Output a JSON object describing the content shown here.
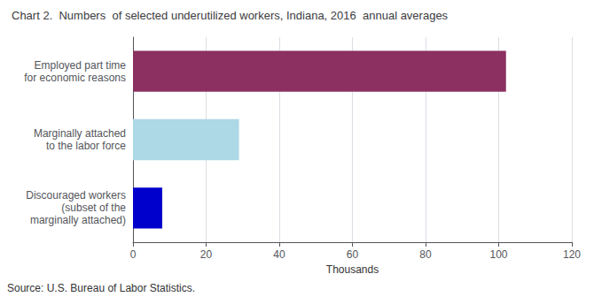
{
  "chart_data": {
    "type": "bar",
    "title": "Chart 2.  Numbers  of selected underutilized workers, Indiana, 2016  annual averages",
    "orientation": "horizontal",
    "categories": [
      "Employed part time\nfor economic reasons",
      "Marginally attached\nto the labor force",
      "Discouraged workers\n(subset of the\nmarginally attached)"
    ],
    "values": [
      102,
      29,
      8
    ],
    "colors": [
      "#8b3060",
      "#add8e6",
      "#0000cc"
    ],
    "xlabel": "Thousands",
    "xlim": [
      0,
      120
    ],
    "xticks": [
      0,
      20,
      40,
      60,
      80,
      100,
      120
    ],
    "grid": true,
    "annotations": [
      "Source: U.S. Bureau of Labor Statistics."
    ]
  }
}
